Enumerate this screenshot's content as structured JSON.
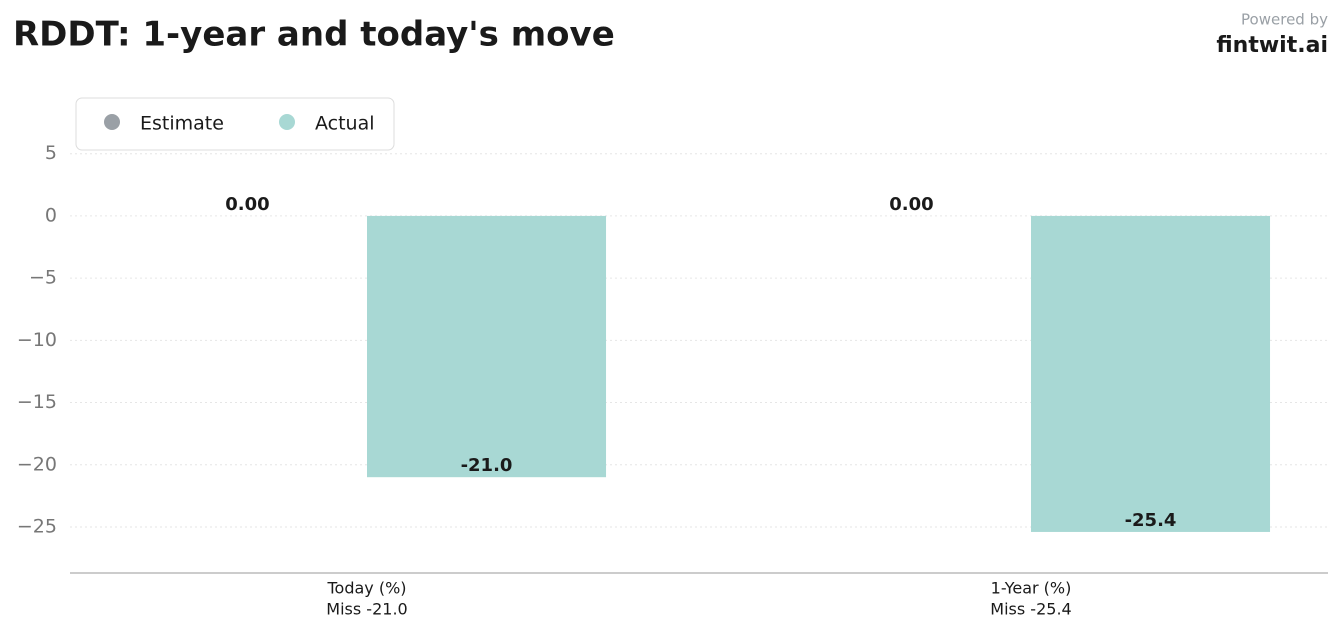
{
  "chart_data": {
    "type": "bar",
    "title": "RDDT: 1-year and today's move",
    "powered_by": "Powered by",
    "brand": "fintwit.ai",
    "categories": [
      "Today (%)",
      "1-Year (%)"
    ],
    "category_notes": [
      "Miss -21.0",
      "Miss -25.4"
    ],
    "series": [
      {
        "name": "Estimate",
        "color": "#9aa0a6",
        "values": [
          0,
          0
        ],
        "value_labels": [
          "0.00",
          "0.00"
        ]
      },
      {
        "name": "Actual",
        "color": "#a8d8d4",
        "values": [
          -21.0,
          -25.4
        ],
        "value_labels": [
          "-21.0",
          "-25.4"
        ]
      }
    ],
    "ylim": [
      -28.7,
      9.3
    ],
    "yticks": [
      5,
      0,
      {
        "value": -5,
        "label": "−5"
      },
      {
        "value": -10,
        "label": "−10"
      },
      {
        "value": -15,
        "label": "−15"
      },
      {
        "value": -20,
        "label": "−20"
      },
      {
        "value": -25,
        "label": "−25"
      }
    ],
    "grid": true,
    "legend": "upper left"
  }
}
